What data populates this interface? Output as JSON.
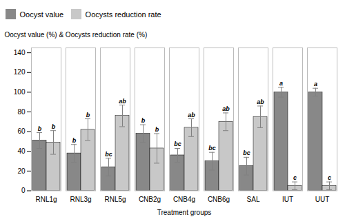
{
  "chart_data": {
    "type": "bar",
    "categories": [
      "RNL1g",
      "RNL3g",
      "RNL5g",
      "CNB2g",
      "CNB4g",
      "CNB6g",
      "SAL",
      "IUT",
      "UUT"
    ],
    "series": [
      {
        "name": "Oocyst value",
        "color": "#888888",
        "values": [
          51,
          38,
          24,
          58,
          36,
          30,
          25,
          100,
          100
        ],
        "errors": [
          8,
          9,
          9,
          9,
          7,
          9,
          9,
          5,
          4
        ],
        "annotations": [
          "b",
          "b",
          "bc",
          "b",
          "bc",
          "bc",
          "bc",
          "a",
          "a"
        ]
      },
      {
        "name": "Oocysts reduction rate",
        "color": "#c8c8c8",
        "values": [
          49,
          62,
          76,
          43,
          64,
          70,
          75,
          5,
          5
        ],
        "errors": [
          12,
          11,
          11,
          15,
          9,
          9,
          11,
          4,
          4
        ],
        "annotations": [
          "b",
          "b",
          "ab",
          "b",
          "ab",
          "ab",
          "ab",
          "c",
          "c"
        ]
      }
    ],
    "xlabel": "Treatment groups",
    "ylabel": "Oocyst value (%) & Oocysts reduction rate (%)",
    "ylim": [
      0,
      145
    ],
    "yticks": [
      0,
      20,
      40,
      60,
      80,
      100,
      120,
      140
    ],
    "legend": "upper left",
    "grid": false
  }
}
